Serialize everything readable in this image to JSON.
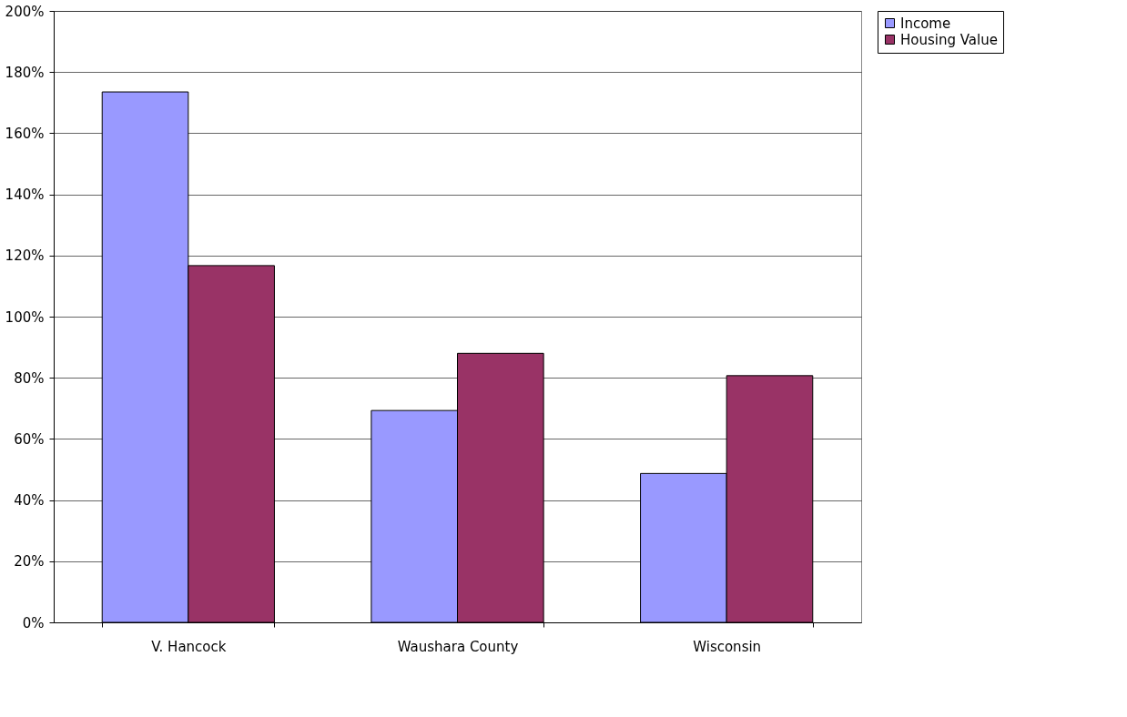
{
  "chart_data": {
    "type": "bar",
    "categories": [
      "V. Hancock",
      "Waushara County",
      "Wisconsin"
    ],
    "series": [
      {
        "name": "Income",
        "color": "#9999ff",
        "values": [
          173.5,
          69.3,
          48.7
        ]
      },
      {
        "name": "Housing Value",
        "color": "#993366",
        "values": [
          116.7,
          88.0,
          80.7
        ]
      }
    ],
    "ylim": [
      0,
      200
    ],
    "yticks": [
      {
        "value": 0,
        "label": "0%"
      },
      {
        "value": 20,
        "label": "20%"
      },
      {
        "value": 40,
        "label": "40%"
      },
      {
        "value": 60,
        "label": "60%"
      },
      {
        "value": 80,
        "label": "80%"
      },
      {
        "value": 100,
        "label": "100%"
      },
      {
        "value": 120,
        "label": "120%"
      },
      {
        "value": 140,
        "label": "140%"
      },
      {
        "value": 160,
        "label": "160%"
      },
      {
        "value": 180,
        "label": "180%"
      },
      {
        "value": 200,
        "label": "200%"
      }
    ],
    "grid": "y",
    "legend": "right"
  }
}
